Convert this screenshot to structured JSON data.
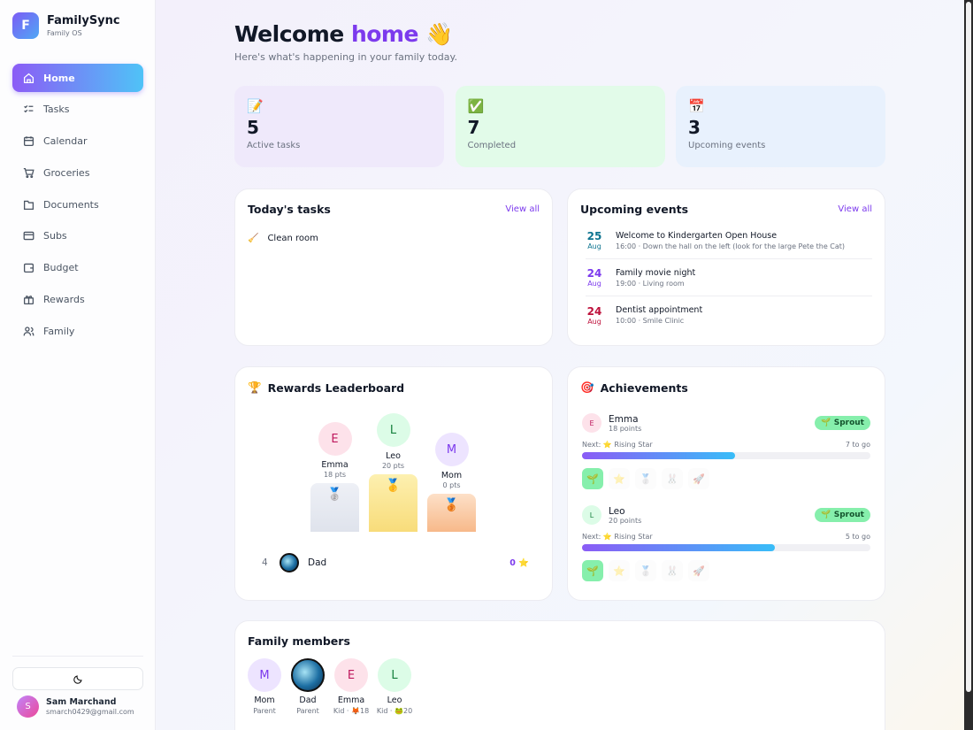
{
  "sidebar": {
    "brand": {
      "logo": "F",
      "name": "FamilySync",
      "subtitle": "Family OS"
    },
    "nav": [
      "Home",
      "Tasks",
      "Calendar",
      "Groceries",
      "Documents",
      "Subs",
      "Budget",
      "Rewards",
      "Family"
    ],
    "user": {
      "avatar": "S",
      "name": "Sam Marchand",
      "email": "smarch0429@gmail.com"
    }
  },
  "header": {
    "title": "Welcome",
    "title_highlight": "home",
    "title_emoji": "👋",
    "subtitle": "Here's what's happening in your family today."
  },
  "stats": [
    {
      "icon": "📝",
      "value": 5,
      "label": "Active tasks"
    },
    {
      "icon": "✅",
      "value": 7,
      "label": "Completed"
    },
    {
      "icon": "📅",
      "value": 3,
      "label": "Upcoming events"
    }
  ],
  "tasks_card": {
    "title": "Today's tasks",
    "link": "View all",
    "items": [
      {
        "icon": "🧹",
        "text": "Clean room"
      }
    ]
  },
  "events_card": {
    "title": "Upcoming events",
    "link": "View all",
    "items": [
      {
        "day": 25,
        "month": "Aug",
        "title": "Welcome to Kindergarten Open House",
        "details": "16:00 · Down the hall on the left (look for the large Pete the Cat)"
      },
      {
        "day": 24,
        "month": "Aug",
        "title": "Family movie night",
        "details": "19:00 · Living room"
      },
      {
        "day": 24,
        "month": "Aug",
        "title": "Dentist appointment",
        "details": "10:00 · Smile Clinic"
      }
    ]
  },
  "leaderboard": {
    "icon": "🏆",
    "title": "Rewards Leaderboard",
    "podium": [
      {
        "initial": "E",
        "name": "Emma",
        "points": "18 pts",
        "medal": "🥈"
      },
      {
        "initial": "L",
        "name": "Leo",
        "points": "20 pts",
        "medal": "🥇"
      },
      {
        "initial": "M",
        "name": "Mom",
        "points": "0 pts",
        "medal": "🥉"
      }
    ],
    "others": [
      {
        "rank": 4,
        "name": "Dad",
        "points": "0 ⭐"
      }
    ]
  },
  "achievements": {
    "icon": "🎯",
    "title": "Achievements",
    "members": [
      {
        "initial": "E",
        "name": "Emma",
        "points": "18 points",
        "badge": "🌱 Sprout",
        "next": "Next: ⭐ Rising Star",
        "to_go": "7 to go",
        "icons": [
          "🌱",
          "⭐",
          "🥈",
          "🐰",
          "🚀"
        ]
      },
      {
        "initial": "L",
        "name": "Leo",
        "points": "20 points",
        "badge": "🌱 Sprout",
        "next": "Next: ⭐ Rising Star",
        "to_go": "5 to go",
        "icons": [
          "🌱",
          "⭐",
          "🥈",
          "🐰",
          "🚀"
        ]
      }
    ]
  },
  "family": {
    "title": "Family members",
    "members": [
      {
        "initial": "M",
        "name": "Mom",
        "role": "Parent"
      },
      {
        "initial": null,
        "name": "Dad",
        "role": "Parent"
      },
      {
        "initial": "E",
        "name": "Emma",
        "role": "Kid · 🦊18"
      },
      {
        "initial": "L",
        "name": "Leo",
        "role": "Kid · 🐸20"
      }
    ]
  }
}
